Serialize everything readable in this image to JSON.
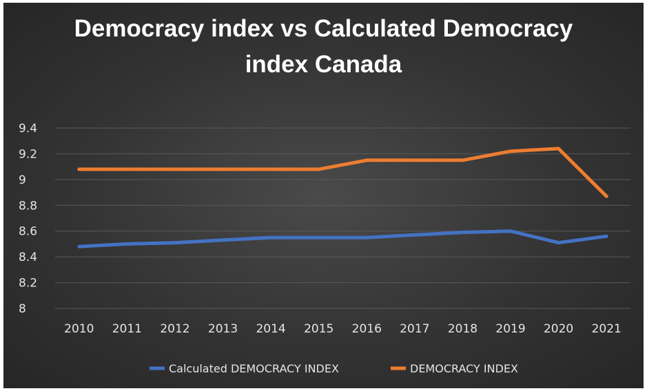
{
  "chart_data": {
    "type": "line",
    "title_lines": [
      "Democracy index vs Calculated Democracy",
      "index Canada"
    ],
    "x": [
      "2010",
      "2011",
      "2012",
      "2013",
      "2014",
      "2015",
      "2016",
      "2017",
      "2018",
      "2019",
      "2020",
      "2021"
    ],
    "ylim": [
      8,
      9.4
    ],
    "yticks": [
      "8",
      "8.2",
      "8.4",
      "8.6",
      "8.8",
      "9",
      "9.2",
      "9.4"
    ],
    "grid": true,
    "legend_position": "bottom",
    "series": [
      {
        "name": "Calculated DEMOCRACY INDEX",
        "color": "#4472c4",
        "values": [
          8.48,
          8.5,
          8.51,
          8.53,
          8.55,
          8.55,
          8.55,
          8.57,
          8.59,
          8.6,
          8.51,
          8.56
        ]
      },
      {
        "name": "DEMOCRACY INDEX",
        "color": "#ed7d31",
        "values": [
          9.08,
          9.08,
          9.08,
          9.08,
          9.08,
          9.08,
          9.15,
          9.15,
          9.15,
          9.22,
          9.24,
          8.87
        ]
      }
    ]
  }
}
